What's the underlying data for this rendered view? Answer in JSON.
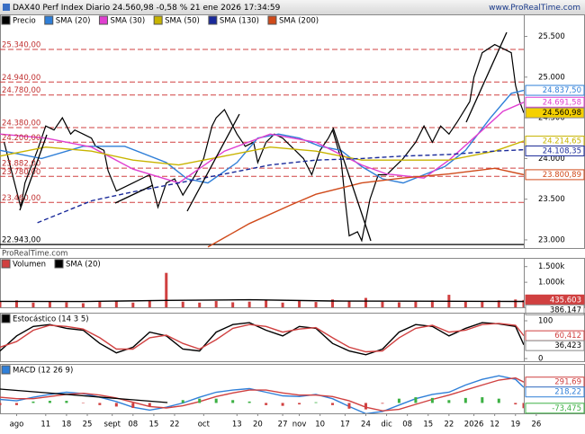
{
  "header": {
    "title": "DAX40 Perf Index Diario 24.560,98 -0,58 % 21 ene 2026 17:34:59",
    "site": "www.ProRealTime.com"
  },
  "chart_data": [
    {
      "type": "line",
      "source": "ProRealTime.com",
      "xlim": [
        0,
        126
      ],
      "ylim": [
        22900,
        25760
      ],
      "yticks": [
        {
          "value": 25500,
          "label": "25.500"
        },
        {
          "value": 25000,
          "label": "25.000"
        },
        {
          "value": 24500,
          "label": "24.500"
        },
        {
          "value": 24000,
          "label": "24.000"
        },
        {
          "value": 23500,
          "label": "23.500"
        },
        {
          "value": 23000,
          "label": "23.000"
        }
      ],
      "levels": [
        {
          "value": 25340,
          "label": "25.340,00"
        },
        {
          "value": 24940,
          "label": "24.940,00"
        },
        {
          "value": 24780,
          "label": "24.780,00"
        },
        {
          "value": 24380,
          "label": "24.380,00"
        },
        {
          "value": 24200,
          "label": "24.200,00"
        },
        {
          "value": 23882,
          "label": "23.882,00"
        },
        {
          "value": 23780,
          "label": "23.780,00"
        },
        {
          "value": 23460,
          "label": "23.460,00"
        }
      ],
      "floor": {
        "value": 22943,
        "label": "22.943,00"
      },
      "series": [
        {
          "name": "Precio",
          "color": "#000000",
          "style": "line",
          "label_bg": "#f5d000",
          "last_label": "24.560,98",
          "x": [
            1,
            5,
            6,
            9,
            11,
            13,
            15,
            17,
            18,
            20,
            22,
            23,
            25,
            26,
            28,
            30,
            32,
            34,
            36,
            38,
            40,
            42,
            44,
            47,
            49,
            51,
            52,
            54,
            57,
            59,
            61,
            62,
            64,
            66,
            68,
            69,
            71,
            73,
            75,
            77,
            79,
            80,
            82,
            83,
            84,
            86,
            87,
            89,
            91,
            93,
            95,
            97,
            100,
            102,
            104,
            106,
            108,
            110,
            113,
            114,
            116,
            119,
            121,
            123,
            124,
            125,
            126
          ],
          "values": [
            24200,
            23400,
            23700,
            24100,
            24400,
            24350,
            24500,
            24300,
            24350,
            24300,
            24250,
            24150,
            24100,
            23850,
            23600,
            23650,
            23700,
            23750,
            23800,
            23400,
            23700,
            23750,
            23550,
            23800,
            24000,
            24400,
            24500,
            24600,
            24300,
            24150,
            24200,
            23950,
            24200,
            24300,
            24250,
            24200,
            24100,
            24000,
            23800,
            24100,
            24250,
            24350,
            24000,
            23500,
            23050,
            23100,
            22990,
            23500,
            23800,
            23800,
            23900,
            24000,
            24200,
            24400,
            24200,
            24400,
            24300,
            24450,
            24700,
            25000,
            25300,
            25400,
            25350,
            25300,
            24900,
            24700,
            24560.98
          ]
        },
        {
          "name": "SMA (20)",
          "color": "#2f7fd8",
          "style": "line",
          "last_label": "24.837,50",
          "x": [
            0,
            10,
            20,
            30,
            40,
            45,
            50,
            57,
            62,
            67,
            72,
            77,
            82,
            87,
            92,
            97,
            102,
            107,
            112,
            118,
            123,
            126
          ],
          "values": [
            24100,
            24000,
            24150,
            24150,
            23950,
            23750,
            23700,
            23950,
            24250,
            24300,
            24250,
            24150,
            24100,
            23900,
            23750,
            23700,
            23800,
            23900,
            24100,
            24500,
            24800,
            24837.5
          ]
        },
        {
          "name": "SMA (30)",
          "color": "#e040d0",
          "style": "line",
          "last_label": "24.691,58",
          "x": [
            0,
            11,
            22,
            32,
            43,
            54,
            65,
            76,
            87,
            93,
            102,
            108,
            115,
            121,
            126
          ],
          "values": [
            24300,
            24250,
            24140,
            23870,
            23700,
            24090,
            24300,
            24200,
            23920,
            23810,
            23760,
            23980,
            24300,
            24580,
            24691.58
          ]
        },
        {
          "name": "SMA (50)",
          "color": "#c8b400",
          "style": "line",
          "last_label": "24.214,65",
          "x": [
            0,
            11,
            22,
            32,
            43,
            54,
            65,
            76,
            87,
            97,
            108,
            119,
            126
          ],
          "values": [
            24030,
            24140,
            24090,
            23980,
            23920,
            24030,
            24140,
            24090,
            23980,
            23980,
            23980,
            24090,
            24214.65
          ]
        },
        {
          "name": "SMA (130)",
          "color": "#1a2a9a",
          "style": "dashed",
          "last_label": "24.108,35",
          "x": [
            9,
            22,
            32,
            43,
            54,
            65,
            76,
            87,
            97,
            108,
            119,
            126
          ],
          "values": [
            23210,
            23480,
            23590,
            23700,
            23810,
            23920,
            23980,
            24000,
            24030,
            24050,
            24090,
            24108.35
          ]
        },
        {
          "name": "SMA (200)",
          "color": "#d04a1a",
          "style": "line",
          "last_label": "23.800,89",
          "x": [
            50,
            60,
            70,
            76,
            87,
            97,
            108,
            119,
            126
          ],
          "values": [
            22912,
            23200,
            23430,
            23560,
            23700,
            23760,
            23810,
            23880,
            23800.89
          ]
        }
      ]
    },
    {
      "type": "bar",
      "xlim": [
        0,
        126
      ],
      "ylim": [
        200000,
        1750000
      ],
      "yticks": [
        {
          "value": 1500000,
          "label": "1.500k"
        },
        {
          "value": 1000000,
          "label": "1.000k"
        }
      ],
      "series": [
        {
          "name": "Volumen",
          "color": "#d04040",
          "style": "bar",
          "label_bg": "#d04040",
          "last_label": "435.603",
          "x": [
            0,
            4,
            8,
            12,
            16,
            20,
            24,
            28,
            32,
            36,
            40,
            44,
            48,
            52,
            56,
            60,
            64,
            68,
            72,
            76,
            80,
            84,
            88,
            92,
            96,
            100,
            104,
            108,
            112,
            116,
            120,
            124,
            126
          ],
          "values": [
            380000,
            420000,
            350000,
            400000,
            360000,
            330000,
            380000,
            400000,
            350000,
            420000,
            1300000,
            380000,
            350000,
            400000,
            360000,
            380000,
            420000,
            350000,
            400000,
            370000,
            450000,
            400000,
            500000,
            380000,
            360000,
            400000,
            420000,
            600000,
            380000,
            400000,
            420000,
            450000,
            435603
          ]
        },
        {
          "name": "SMA (20)",
          "color": "#000000",
          "style": "line",
          "last_label": "386.147",
          "x": [
            0,
            20,
            40,
            60,
            80,
            100,
            120,
            126
          ],
          "values": [
            390000,
            385000,
            420000,
            440000,
            400000,
            395000,
            390000,
            386147
          ]
        }
      ]
    },
    {
      "type": "line",
      "xlim": [
        0,
        126
      ],
      "ylim": [
        -7,
        119
      ],
      "yticks": [
        0,
        100
      ],
      "series": [
        {
          "name": "Estocástico (14 3 5)",
          "color": "#000000",
          "style": "line",
          "last_label": "36,423",
          "x": [
            0,
            4,
            8,
            12,
            16,
            20,
            24,
            28,
            32,
            36,
            40,
            44,
            48,
            52,
            56,
            60,
            64,
            68,
            72,
            76,
            80,
            84,
            88,
            92,
            96,
            100,
            104,
            108,
            112,
            116,
            120,
            124,
            126
          ],
          "values": [
            20,
            60,
            85,
            90,
            80,
            75,
            40,
            15,
            30,
            70,
            60,
            25,
            20,
            70,
            90,
            95,
            75,
            60,
            85,
            80,
            40,
            20,
            10,
            25,
            70,
            90,
            85,
            60,
            80,
            95,
            92,
            85,
            36.423
          ]
        },
        {
          "name": "%D",
          "legend": false,
          "color": "#d04040",
          "style": "line",
          "last_label": "60,412",
          "x": [
            0,
            4,
            8,
            12,
            16,
            20,
            24,
            28,
            32,
            36,
            40,
            44,
            48,
            52,
            56,
            60,
            64,
            68,
            72,
            76,
            80,
            84,
            88,
            92,
            96,
            100,
            104,
            108,
            112,
            116,
            120,
            124,
            126
          ],
          "values": [
            30,
            45,
            75,
            88,
            85,
            78,
            55,
            25,
            25,
            55,
            62,
            40,
            25,
            50,
            80,
            90,
            85,
            70,
            78,
            82,
            55,
            30,
            18,
            20,
            55,
            80,
            88,
            70,
            75,
            90,
            93,
            88,
            60.412
          ]
        }
      ]
    },
    {
      "type": "line",
      "xlim": [
        0,
        126
      ],
      "ylim": [
        -145,
        533
      ],
      "xticks": [
        {
          "value": 4,
          "label": "ago"
        },
        {
          "value": 11,
          "label": "11"
        },
        {
          "value": 16,
          "label": "18"
        },
        {
          "value": 21,
          "label": "25"
        },
        {
          "value": 27,
          "label": "sept"
        },
        {
          "value": 32,
          "label": "08"
        },
        {
          "value": 37,
          "label": "15"
        },
        {
          "value": 42,
          "label": "22"
        },
        {
          "value": 49,
          "label": "oct"
        },
        {
          "value": 57,
          "label": "13"
        },
        {
          "value": 62,
          "label": "20"
        },
        {
          "value": 68,
          "label": "27"
        },
        {
          "value": 72,
          "label": "nov"
        },
        {
          "value": 77,
          "label": "10"
        },
        {
          "value": 83,
          "label": "17"
        },
        {
          "value": 88,
          "label": "24"
        },
        {
          "value": 93,
          "label": "dic"
        },
        {
          "value": 98,
          "label": "08"
        },
        {
          "value": 103,
          "label": "15"
        },
        {
          "value": 108,
          "label": "22"
        },
        {
          "value": 114,
          "label": "2026"
        },
        {
          "value": 119,
          "label": "12"
        },
        {
          "value": 124,
          "label": "19"
        },
        {
          "value": 129,
          "label": "26"
        }
      ],
      "series": [
        {
          "name": "MACD (12 26 9)",
          "color": "#2f7fd8",
          "style": "line",
          "last_label": "218,22",
          "x": [
            0,
            4,
            8,
            12,
            16,
            20,
            24,
            28,
            32,
            36,
            40,
            44,
            48,
            52,
            56,
            60,
            64,
            68,
            72,
            76,
            80,
            84,
            88,
            92,
            96,
            100,
            104,
            108,
            112,
            116,
            120,
            124,
            126
          ],
          "values": [
            50,
            30,
            80,
            120,
            150,
            130,
            80,
            20,
            -60,
            -100,
            -60,
            0,
            80,
            150,
            180,
            200,
            150,
            100,
            90,
            120,
            60,
            -50,
            -150,
            -120,
            -30,
            60,
            120,
            150,
            250,
            330,
            380,
            330,
            218.22
          ]
        },
        {
          "name": "Señal",
          "legend": false,
          "color": "#d04040",
          "style": "line",
          "last_label": "291,69",
          "x": [
            0,
            4,
            8,
            12,
            16,
            20,
            24,
            28,
            32,
            36,
            40,
            44,
            48,
            52,
            56,
            60,
            64,
            68,
            72,
            76,
            80,
            84,
            88,
            92,
            96,
            100,
            104,
            108,
            112,
            116,
            120,
            124,
            126
          ],
          "values": [
            80,
            60,
            60,
            90,
            120,
            135,
            110,
            70,
            10,
            -50,
            -70,
            -40,
            20,
            90,
            140,
            180,
            180,
            140,
            110,
            110,
            90,
            30,
            -60,
            -110,
            -90,
            -20,
            50,
            110,
            180,
            250,
            320,
            350,
            291.69
          ]
        },
        {
          "name": "Histograma",
          "legend": false,
          "color": "#3cb043",
          "style": "histogram",
          "last_label": "-73,475",
          "x": [
            0,
            4,
            8,
            12,
            16,
            20,
            24,
            28,
            32,
            36,
            40,
            44,
            48,
            52,
            56,
            60,
            64,
            68,
            72,
            76,
            80,
            84,
            88,
            92,
            96,
            100,
            104,
            108,
            112,
            116,
            120,
            124,
            126
          ],
          "values": [
            -30,
            -30,
            20,
            30,
            30,
            -5,
            -30,
            -50,
            -70,
            -50,
            10,
            40,
            60,
            60,
            40,
            20,
            -30,
            -40,
            -20,
            10,
            -30,
            -80,
            -90,
            -10,
            60,
            80,
            70,
            40,
            70,
            80,
            60,
            -20,
            -73.475
          ]
        }
      ]
    }
  ]
}
